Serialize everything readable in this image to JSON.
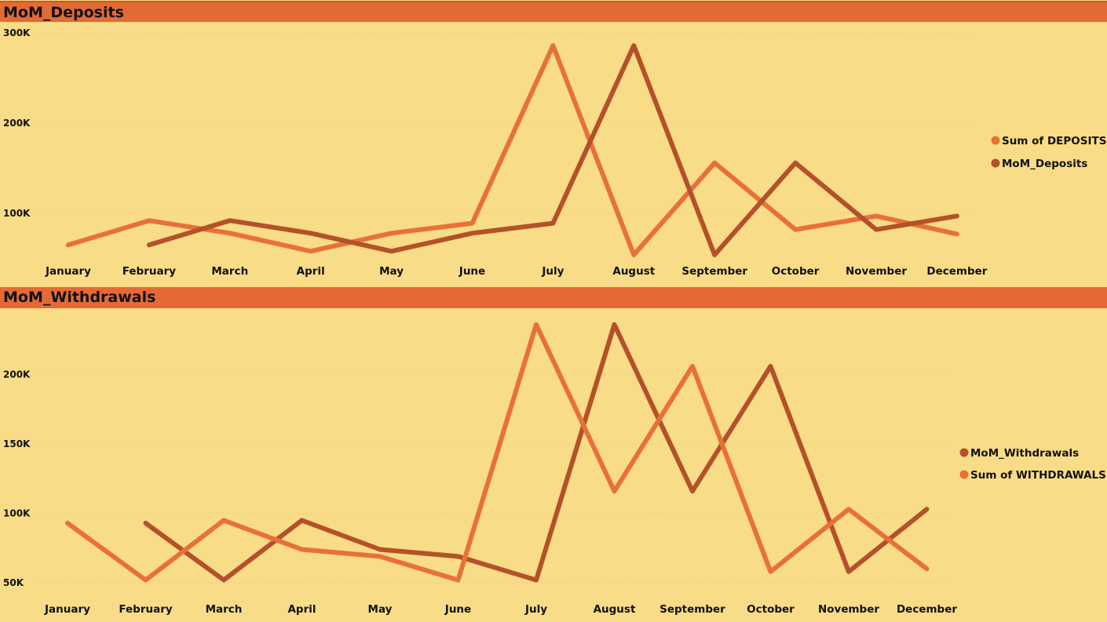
{
  "colors": {
    "header": "#E46A35",
    "background": "#F8DC87",
    "sum_line": "#E8703A",
    "mom_line": "#B4512A"
  },
  "chart_data": [
    {
      "type": "line",
      "title": "MoM_Deposits",
      "categories": [
        "January",
        "February",
        "March",
        "April",
        "May",
        "June",
        "July",
        "August",
        "September",
        "October",
        "November",
        "December"
      ],
      "yticks": [
        "100K",
        "200K",
        "300K"
      ],
      "ytick_values": [
        100000,
        200000,
        300000
      ],
      "ylim": [
        0,
        310000
      ],
      "grid": true,
      "legend": "right",
      "series": [
        {
          "name": "Sum of DEPOSITS",
          "color": "#E8703A",
          "values": [
            65000,
            92000,
            78000,
            58000,
            78000,
            89000,
            286000,
            54000,
            156000,
            82000,
            97000,
            77000
          ]
        },
        {
          "name": "MoM_Deposits",
          "color": "#B4512A",
          "values": [
            null,
            65000,
            92000,
            78000,
            58000,
            78000,
            89000,
            286000,
            54000,
            156000,
            82000,
            97000
          ]
        }
      ]
    },
    {
      "type": "line",
      "title": "MoM_Withdrawals",
      "categories": [
        "January",
        "February",
        "March",
        "April",
        "May",
        "June",
        "July",
        "August",
        "September",
        "October",
        "November",
        "December"
      ],
      "yticks": [
        "50K",
        "100K",
        "150K",
        "200K"
      ],
      "ytick_values": [
        50000,
        100000,
        150000,
        200000
      ],
      "ylim": [
        50000,
        240000
      ],
      "grid": true,
      "legend": "right",
      "series": [
        {
          "name": "MoM_Withdrawals",
          "color": "#B4512A",
          "values": [
            null,
            93000,
            52000,
            95000,
            74000,
            69000,
            52000,
            236000,
            116000,
            206000,
            58000,
            103000
          ]
        },
        {
          "name": "Sum of WITHDRAWALS",
          "color": "#E8703A",
          "values": [
            93000,
            52000,
            95000,
            74000,
            69000,
            52000,
            236000,
            116000,
            206000,
            58000,
            103000,
            60000
          ]
        }
      ]
    }
  ]
}
